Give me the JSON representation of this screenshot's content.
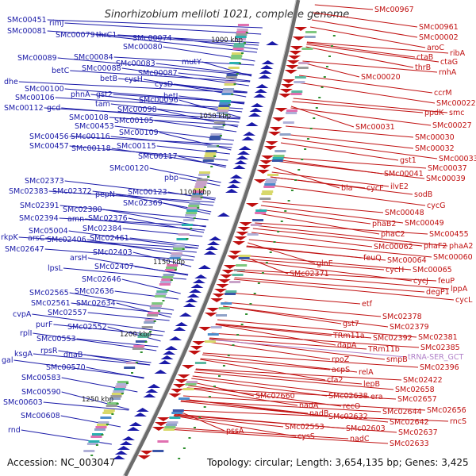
{
  "title": "Sinorhizobium meliloti 1021, complete genome",
  "accession_label": "Accession: NC_003047",
  "summary_label": "Topology: circular; Length: 3,654,135 bp; Genes: 3,425",
  "scale_ticks": [
    "1000 kbp",
    "1050 kbp",
    "1100 kbp",
    "1150 kbp",
    "1200 kbp",
    "1250 kbp"
  ],
  "colors": {
    "forward_strand": "#1a1aa8",
    "reverse_strand": "#c01010",
    "rna_gene": "#b080c8",
    "backbone": "#777777",
    "tick_marker": "#2f8f2f"
  },
  "left_labels": [
    "SMc00451",
    "rimJ",
    "SMc00081",
    "SMc00079",
    "thrC1",
    "SMc00074",
    "SMc00080",
    "SMc00089",
    "SMc00084",
    "SMc00083",
    "mutY",
    "SMc00088",
    "SMc00087",
    "betC",
    "betB",
    "cysH",
    "cysD",
    "dhe",
    "SMc00100",
    "phnA",
    "gst2",
    "SMc00106",
    "tam",
    "SMc00096",
    "betI",
    "SMc00112",
    "gcd",
    "SMc00098",
    "SMc00108",
    "SMc00105",
    "SMc00453",
    "SMc00109",
    "SMc00456",
    "SMc00116",
    "SMc00457",
    "SMc00118",
    "SMc00115",
    "SMc00117",
    "SMc00120",
    "SMc02373",
    "pbp",
    "SMc02383",
    "SMc02372",
    "pepN",
    "SMc00123",
    "SMc02369",
    "SMc02391",
    "SMc02380",
    "SMc02394",
    "amn",
    "SMc02376",
    "SMc05004",
    "SMc02384",
    "rkpK",
    "arsC",
    "SMc02406",
    "SMc02461",
    "SMc02647",
    "SMc02403",
    "arsH",
    "SMc02407",
    "lpsL",
    "SMc02646",
    "SMc02565",
    "SMc02636",
    "SMc02561",
    "SMc02634",
    "cvpA",
    "SMc02557",
    "purF",
    "SMc02552",
    "rplI",
    "SMc00553",
    "ksgA",
    "rpsR",
    "gal",
    "dnaB",
    "SMc00570",
    "SMc00583",
    "SMc00590",
    "SMc00603",
    "SMc00608",
    "rnd"
  ],
  "right_labels": [
    "SMc00967",
    "SMc00961",
    "SMc00002",
    "aroC",
    "ribA",
    "ctaB",
    "ctaG",
    "thrB",
    "rnhA",
    "SMc00020",
    "ccrM",
    "SMc00022",
    "ppdK",
    "smc",
    "SMc00027",
    "SMc00031",
    "SMc00030",
    "SMc00032",
    "gst1",
    "SMc00033",
    "SMc00037",
    "SMc00041",
    "SMc00039",
    "bla",
    "cycF",
    "ilvE2",
    "sodB",
    "cycG",
    "SMc00048",
    "phaB2",
    "SMc00049",
    "phaC2",
    "SMc00455",
    "SMc00062",
    "phaF2",
    "phaA2",
    "feuQ",
    "SMc00064",
    "SMc00060",
    "glnE",
    "cycH",
    "SMc00065",
    "SMc02371",
    "cycJ",
    "feuP",
    "degP1",
    "lppA",
    "cycL",
    "etf",
    "SMc02378",
    "gst7",
    "SMc02379",
    "TRm11a",
    "SMc02392",
    "SMc02381",
    "dapA",
    "TRm11b",
    "SMc02385",
    "rpoZ",
    "smpB",
    "acpS",
    "SMc02396",
    "relA",
    "cfa2",
    "SMc02422",
    "lepB",
    "SMc02658",
    "era",
    "SMc02657",
    "SMc02660",
    "SMc02638",
    "recO",
    "SMc02644",
    "SMc02656",
    "nadA",
    "SMc02642",
    "rncS",
    "nadB",
    "SMc02632",
    "pssA",
    "SMc02553",
    "SMc02603",
    "SMc02637",
    "cysS",
    "nadC",
    "SMc02633"
  ],
  "rna_labels": [
    "tRNA-SER_GCT"
  ]
}
